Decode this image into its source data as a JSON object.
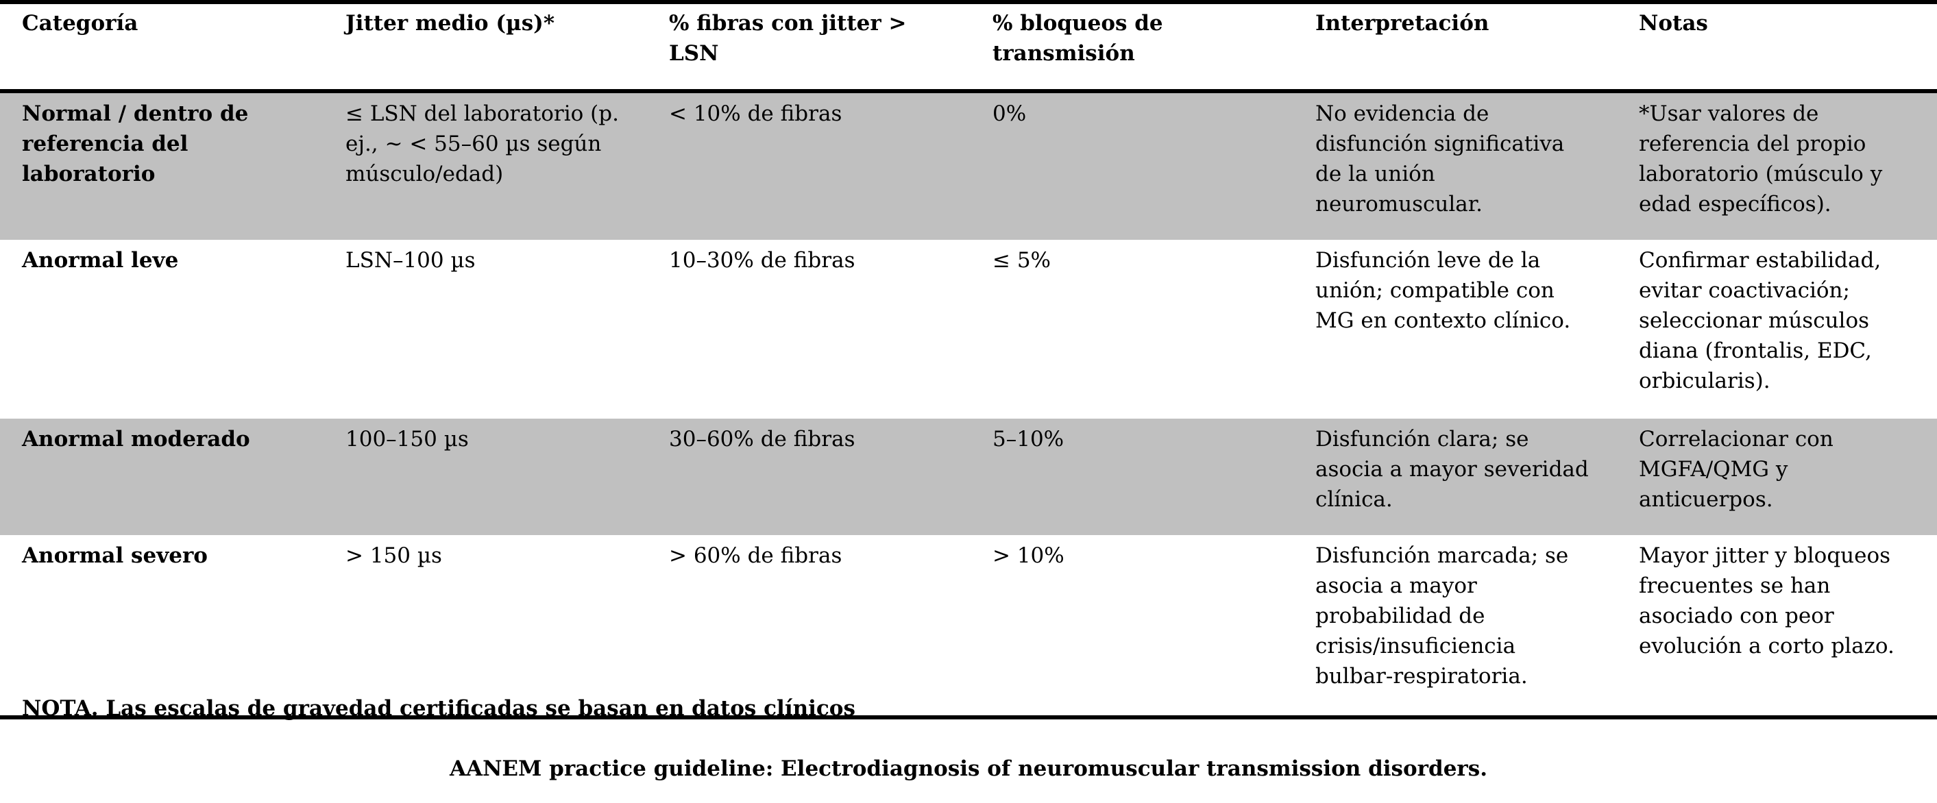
{
  "table": {
    "headers": [
      "Categoría",
      "Jitter medio (µs)*",
      "% fibras con jitter > LSN",
      "% bloqueos de transmisión",
      "Interpretación",
      "Notas"
    ],
    "rows": [
      {
        "shaded": true,
        "cells": [
          "Normal / dentro de referencia del laboratorio",
          "≤ LSN del laboratorio (p. ej., ~ < 55–60 µs según músculo/edad)",
          "< 10% de fibras",
          "0%",
          "No evidencia de disfunción significativa de la unión neuromuscular.",
          "*Usar valores de referencia del propio laboratorio (músculo y edad específicos)."
        ]
      },
      {
        "shaded": false,
        "cells": [
          "Anormal leve",
          "LSN–100 µs",
          "10–30% de fibras",
          "≤ 5%",
          "Disfunción leve de la unión; compatible con MG en contexto clínico.",
          "Confirmar estabilidad, evitar coactivación; seleccionar músculos diana (frontalis, EDC, orbicularis)."
        ]
      },
      {
        "shaded": true,
        "cells": [
          "Anormal moderado",
          "100–150 µs",
          "30–60% de fibras",
          "5–10%",
          "Disfunción clara; se asocia a mayor severidad clínica.",
          "Correlacionar con MGFA/QMG y anticuerpos."
        ]
      },
      {
        "shaded": false,
        "cells": [
          "Anormal severo",
          "> 150 µs",
          "> 60% de fibras",
          "> 10%",
          "Disfunción marcada; se asocia a mayor probabilidad de crisis/insuficiencia bulbar-respiratoria.",
          "Mayor jitter y bloqueos frecuentes se han asociado con peor evolución a corto plazo."
        ]
      }
    ]
  },
  "footer": {
    "note": "NOTA. Las escalas de gravedad certificadas se basan en datos clínicos",
    "source": "AANEM practice guideline: Electrodiagnosis of neuromuscular transmission disorders."
  },
  "colors": {
    "shaded_row": "#c0c0c0",
    "rule": "#000000"
  }
}
